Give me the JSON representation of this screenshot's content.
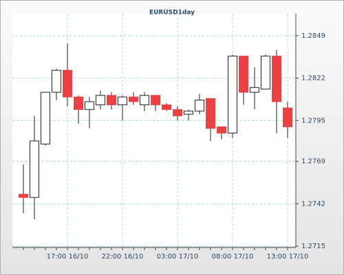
{
  "chart_data": {
    "type": "candlestick",
    "title": "EURUSD1day",
    "categories": [
      null,
      null,
      null,
      null,
      "17:00 16/10",
      null,
      null,
      null,
      null,
      "22:00 16/10",
      null,
      null,
      null,
      null,
      "03:00 17/10",
      null,
      null,
      null,
      null,
      "08:00 17/10",
      null,
      null,
      null,
      null,
      "13:00 17/10"
    ],
    "open": [
      1.2748,
      1.2746,
      1.278,
      1.2813,
      1.2827,
      1.281,
      1.2802,
      1.2805,
      1.2811,
      1.2805,
      1.281,
      1.2805,
      1.2811,
      1.2805,
      1.2802,
      1.2799,
      1.2801,
      1.2809,
      1.2791,
      1.2787,
      1.2836,
      1.2813,
      1.2815,
      1.2836,
      1.2803
    ],
    "high": [
      1.2767,
      1.2798,
      1.2813,
      1.2828,
      1.2844,
      1.2811,
      1.281,
      1.2814,
      1.2813,
      1.2811,
      1.2813,
      1.2813,
      1.2811,
      1.2806,
      1.2804,
      1.2802,
      1.2812,
      1.2809,
      1.2791,
      1.2837,
      1.2836,
      1.2829,
      1.2837,
      1.284,
      1.2807
    ],
    "low": [
      1.2736,
      1.2732,
      1.2779,
      1.2808,
      1.2804,
      1.2793,
      1.279,
      1.2802,
      1.2802,
      1.2795,
      1.2805,
      1.2801,
      1.2801,
      1.2801,
      1.2795,
      1.2795,
      1.2799,
      1.2782,
      1.2783,
      1.2784,
      1.2805,
      1.2802,
      1.2815,
      1.2787,
      1.2784
    ],
    "close": [
      1.2746,
      1.2782,
      1.2813,
      1.2827,
      1.281,
      1.2802,
      1.2807,
      1.2811,
      1.2805,
      1.281,
      1.2807,
      1.2811,
      1.2805,
      1.2802,
      1.2798,
      1.2801,
      1.2808,
      1.279,
      1.2787,
      1.2836,
      1.2813,
      1.2816,
      1.2836,
      1.2807,
      1.2791
    ],
    "up_color": "#ffffff",
    "down_color": "#e84242",
    "ylim": [
      1.2715,
      1.2863
    ],
    "yticks": [
      1.2715,
      1.2742,
      1.2769,
      1.2795,
      1.2822,
      1.2849
    ],
    "grid": true
  }
}
